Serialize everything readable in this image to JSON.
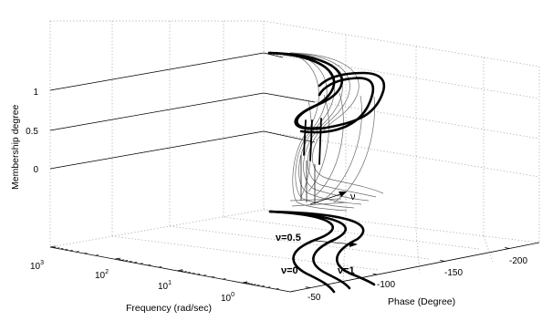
{
  "chart_data": {
    "type": "line",
    "view": "3d",
    "xlabel": "Phase (Degree)",
    "ylabel": "Frequency (rad/sec)",
    "zlabel": "Membership degree",
    "x_ticks": [
      "-50",
      "-100",
      "-150",
      "-200"
    ],
    "y_ticks": [
      "10^0",
      "10^1",
      "10^2",
      "10^3"
    ],
    "z_ticks": [
      "0",
      "0.5",
      "1"
    ],
    "y_scale": "log",
    "grid": true,
    "annotations": {
      "nu_label": "ν",
      "nu0_label": "ν=0",
      "nu05_label": "ν=0.5",
      "nu1_label": "ν=1"
    },
    "series": [
      {
        "name": "ν=0",
        "style": "thick"
      },
      {
        "name": "ν=0.5",
        "style": "thick"
      },
      {
        "name": "ν=1",
        "style": "thick"
      }
    ]
  }
}
